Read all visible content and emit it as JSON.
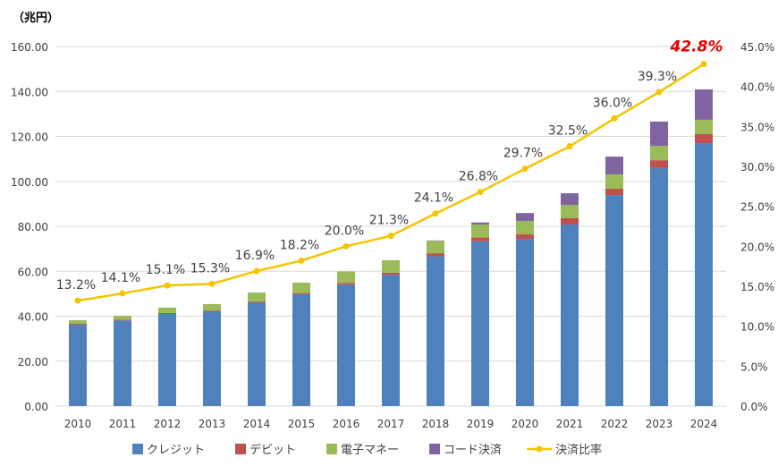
{
  "chart_data": {
    "type": "bar",
    "stacked": true,
    "unit_label": "（兆円）",
    "categories": [
      "2010",
      "2011",
      "2012",
      "2013",
      "2014",
      "2015",
      "2016",
      "2017",
      "2018",
      "2019",
      "2020",
      "2021",
      "2022",
      "2023",
      "2024"
    ],
    "series": [
      {
        "name": "クレジット",
        "color": "#4f81bd",
        "values": [
          36.2,
          38.1,
          41.0,
          42.0,
          46.0,
          49.8,
          54.0,
          58.4,
          66.7,
          73.3,
          74.4,
          80.8,
          93.9,
          105.9,
          117.0
        ]
      },
      {
        "name": "デビット",
        "color": "#c0504d",
        "values": [
          0.4,
          0.4,
          0.4,
          0.4,
          0.5,
          0.5,
          0.8,
          1.0,
          1.3,
          1.7,
          2.0,
          2.8,
          2.8,
          3.5,
          4.0
        ]
      },
      {
        "name": "電子マネー",
        "color": "#9bbb59",
        "values": [
          1.6,
          1.7,
          2.4,
          3.0,
          4.0,
          4.6,
          5.1,
          5.5,
          5.5,
          5.8,
          6.0,
          5.9,
          6.4,
          6.4,
          6.4
        ]
      },
      {
        "name": "コード決済",
        "color": "#8064a2",
        "values": [
          0,
          0,
          0,
          0,
          0,
          0,
          0,
          0,
          0.2,
          0.9,
          3.5,
          5.2,
          7.9,
          10.8,
          13.5
        ]
      }
    ],
    "line_series": {
      "name": "決済比率",
      "color": "#f5c400",
      "axis": "right",
      "values": [
        13.2,
        14.1,
        15.1,
        15.3,
        16.9,
        18.2,
        20.0,
        21.3,
        24.1,
        26.8,
        29.7,
        32.5,
        36.0,
        39.3,
        42.8
      ],
      "labels": [
        "13.2%",
        "14.1%",
        "15.1%",
        "15.3%",
        "16.9%",
        "18.2%",
        "20.0%",
        "21.3%",
        "24.1%",
        "26.8%",
        "29.7%",
        "32.5%",
        "36.0%",
        "39.3%",
        "42.8%"
      ],
      "highlight_color": "#e00000"
    },
    "ylim": [
      0,
      160
    ],
    "y_ticks": [
      "0.00",
      "20.00",
      "40.00",
      "60.00",
      "80.00",
      "100.00",
      "120.00",
      "140.00",
      "160.00"
    ],
    "y2lim": [
      0,
      45
    ],
    "y2_ticks": [
      "0.0%",
      "5.0%",
      "10.0%",
      "15.0%",
      "20.0%",
      "25.0%",
      "30.0%",
      "35.0%",
      "40.0%",
      "45.0%"
    ],
    "grid": true,
    "legend_placement": "bottom"
  }
}
